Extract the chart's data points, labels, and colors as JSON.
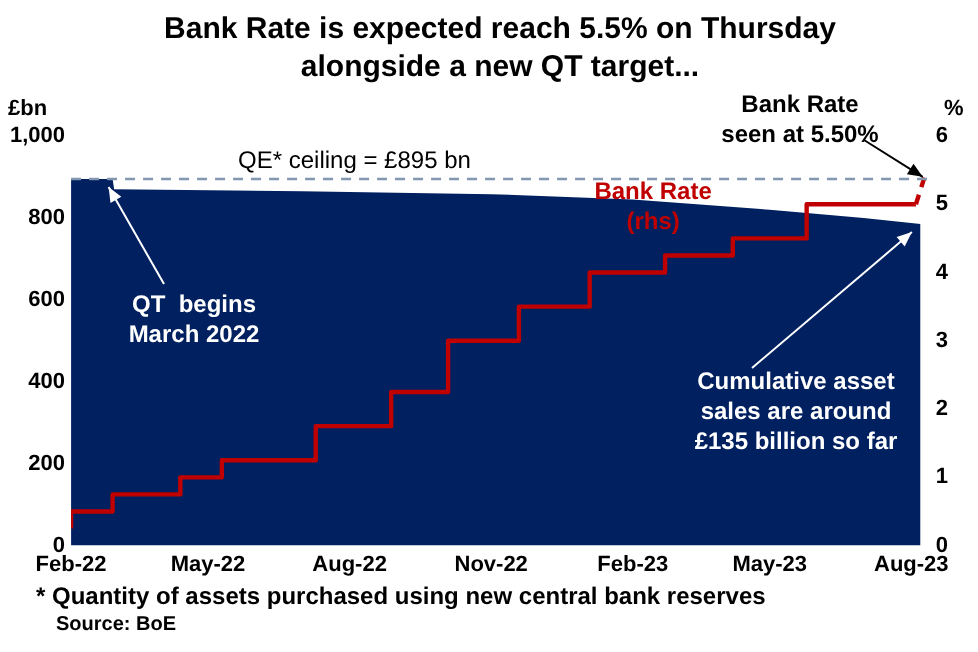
{
  "chart_data": {
    "type": "area",
    "title": "Bank Rate is expected reach 5.5% on Thursday alongside a new QT target...",
    "ylabel": "£bn",
    "y2label": "%",
    "xlim": [
      "2022-02-01",
      "2023-08-13"
    ],
    "xticks": [
      {
        "value": "2022-02-01",
        "label": "Feb-22"
      },
      {
        "value": "2022-05-01",
        "label": "May-22"
      },
      {
        "value": "2022-08-01",
        "label": "Aug-22"
      },
      {
        "value": "2022-11-01",
        "label": "Nov-22"
      },
      {
        "value": "2023-02-01",
        "label": "Feb-23"
      },
      {
        "value": "2023-05-01",
        "label": "May-23"
      },
      {
        "value": "2023-08-01",
        "label": "Aug-23"
      }
    ],
    "ylim": [
      0,
      1000
    ],
    "yticks": [
      0,
      200,
      400,
      600,
      800,
      {
        "value": 1000,
        "label": "1,000"
      }
    ],
    "y2lim": [
      0,
      6
    ],
    "y2ticks": [
      0,
      1,
      2,
      3,
      4,
      5,
      6
    ],
    "series": [
      {
        "color": "#002060",
        "x": [
          "2022-02-01",
          "2022-02-28",
          "2022-03-01",
          "2022-07-01",
          "2022-11-01",
          "2023-02-01",
          "2023-05-01",
          "2023-07-01",
          "2023-08-07"
        ],
        "values": [
          895,
          895,
          870,
          865,
          858,
          845,
          820,
          800,
          785
        ]
      },
      {
        "type": "step",
        "name": "Bank Rate (rhs)",
        "axis": "y2",
        "color": "#c00000",
        "x": [
          "2022-02-01",
          "2022-02-28",
          "2022-04-13",
          "2022-05-10",
          "2022-07-10",
          "2022-08-28",
          "2022-10-04",
          "2022-11-19",
          "2023-01-04",
          "2023-02-22",
          "2023-04-07",
          "2023-05-25",
          "2023-07-04",
          "2023-08-04"
        ],
        "values": [
          0.25,
          0.5,
          0.75,
          1.0,
          1.25,
          1.75,
          2.25,
          3.0,
          3.5,
          4.0,
          4.25,
          4.5,
          5.0,
          5.0
        ]
      },
      {
        "type": "line",
        "axis": "y2",
        "color": "#c00000",
        "line_style": "dashed",
        "x": [
          "2023-08-04",
          "2023-08-11"
        ],
        "values": [
          5.0,
          5.5
        ]
      }
    ],
    "ref_lines": [
      {
        "axis": "y",
        "value": 895,
        "label": "QE* ceiling = £895 bn",
        "color": "#8497b0",
        "line_style": "dashed"
      }
    ],
    "annotations": [
      {
        "text": "QT  begins March 2022",
        "x": "2022-02-28",
        "y": 890
      },
      {
        "text": "Cumulative asset sales are around £135 billion so far",
        "x": "2023-08-04",
        "y": 780
      },
      {
        "text": "Bank Rate seen at 5.50%",
        "x": "2023-08-11",
        "y": 915
      },
      "* Quantity of assets purchased using new central bank reserves",
      "Source: BoE"
    ],
    "grid": false,
    "legend": false
  }
}
